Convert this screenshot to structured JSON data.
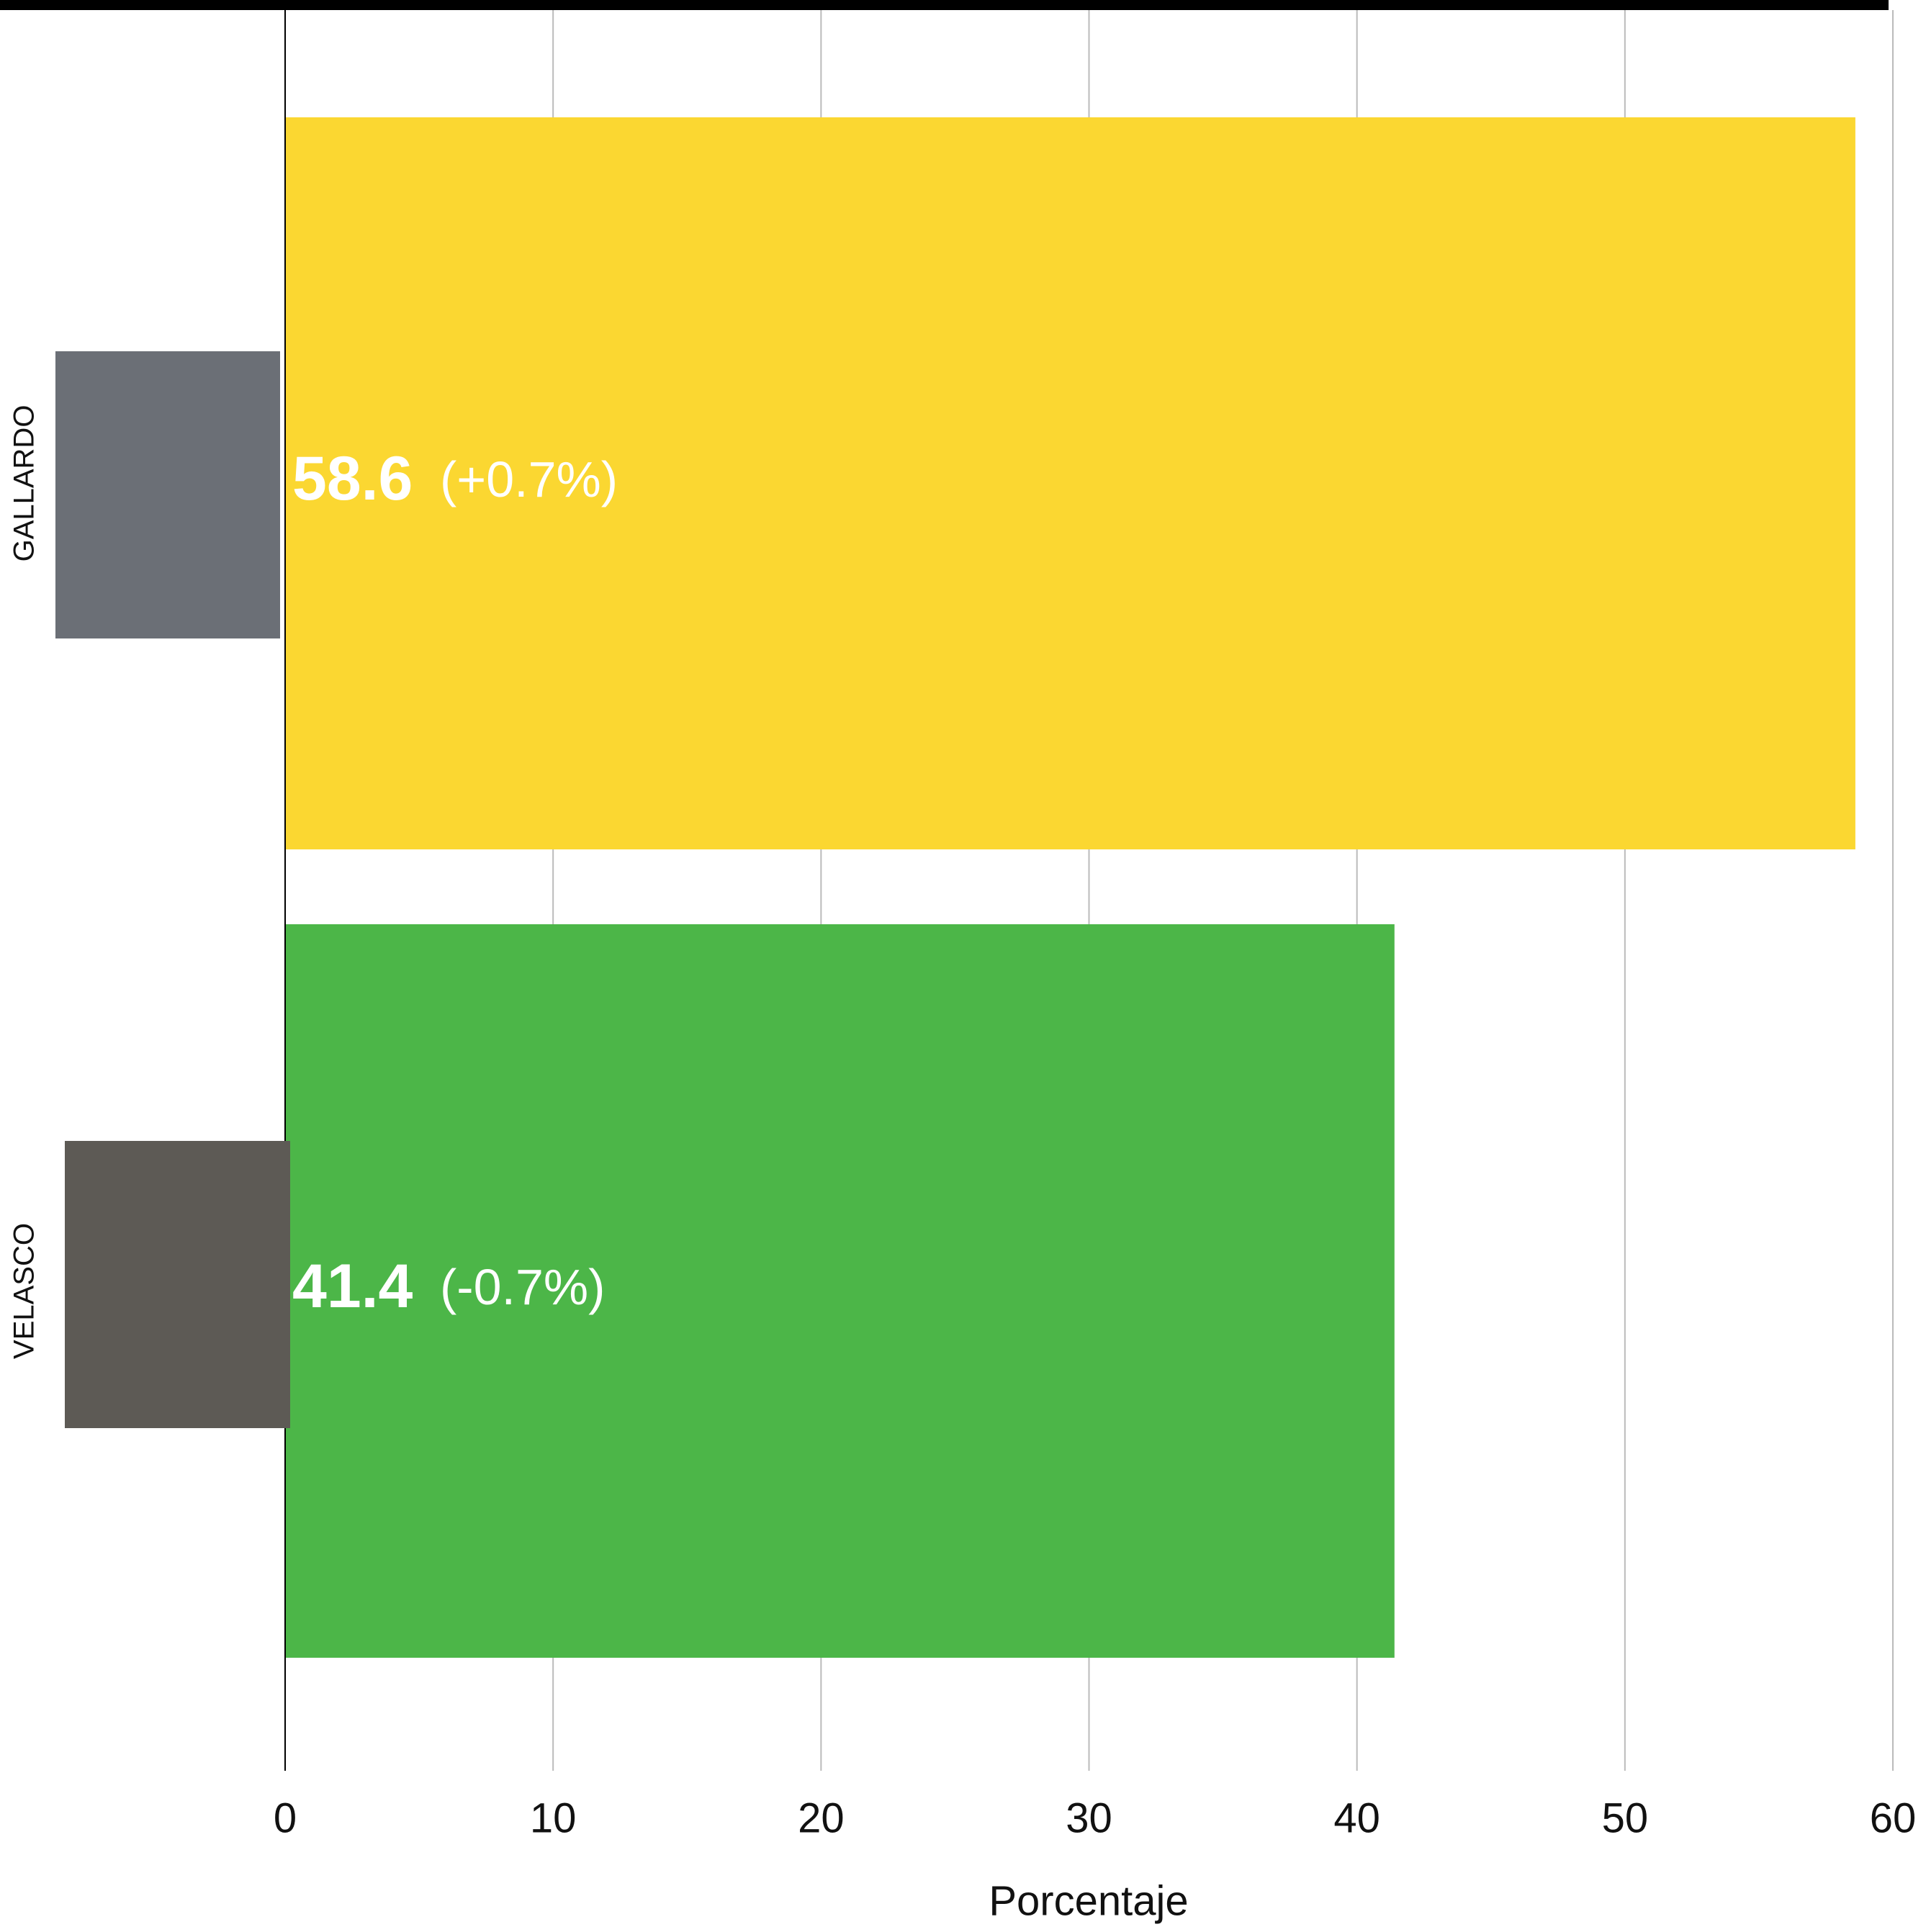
{
  "chart_data": {
    "type": "bar",
    "orientation": "horizontal",
    "categories": [
      "GALLARDO",
      "VELASCO"
    ],
    "values": [
      58.6,
      41.4
    ],
    "colors": [
      "#FBD731",
      "#4CB648"
    ],
    "annotations": [
      "(+0.7%)",
      "(-0.7%)"
    ],
    "xlabel": "Porcentaje",
    "xlim": [
      0,
      60
    ],
    "xticks": [
      0,
      10,
      20,
      30,
      40,
      50,
      60
    ],
    "grid": true
  }
}
